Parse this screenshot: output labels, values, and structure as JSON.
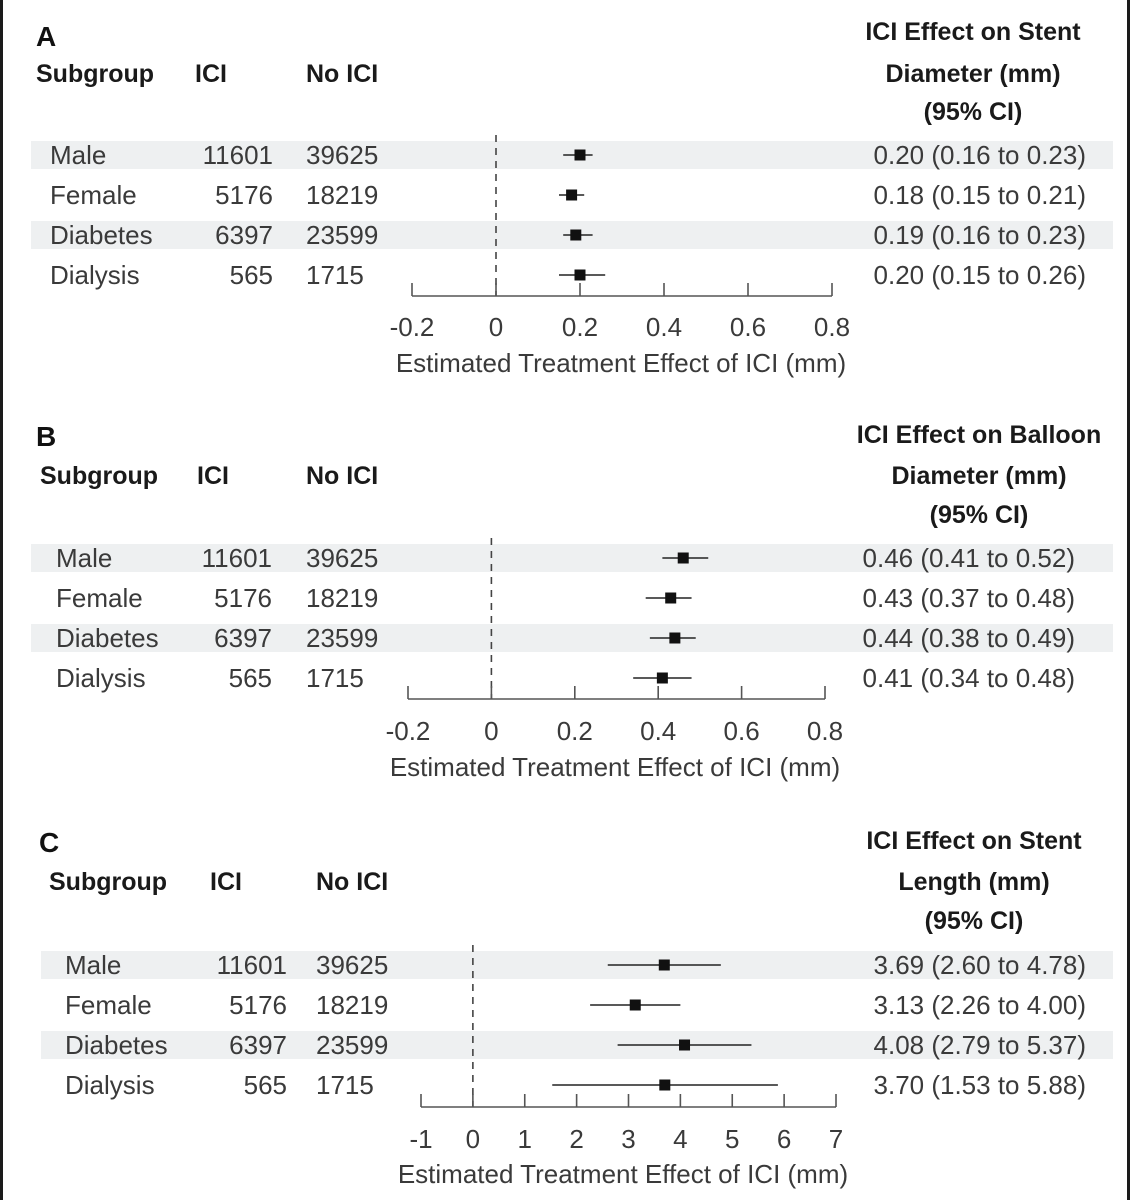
{
  "column_headers": {
    "subgroup": "Subgroup",
    "ici": "ICI",
    "no_ici": "No ICI"
  },
  "chart_data": [
    {
      "type": "forest",
      "panel": "A",
      "effect_header": [
        "ICI Effect on Stent",
        "Diameter (mm)",
        "(95% CI)"
      ],
      "xlabel": "Estimated Treatment Effect of ICI (mm)",
      "xlim": [
        -0.2,
        0.8
      ],
      "ticks": [
        -0.2,
        0,
        0.2,
        0.4,
        0.6,
        0.8
      ],
      "tick_labels": [
        "-0.2",
        "0",
        "0.2",
        "0.4",
        "0.6",
        "0.8"
      ],
      "reference": 0,
      "rows": [
        {
          "subgroup": "Male",
          "ici": "11601",
          "no_ici": "39625",
          "estimate": 0.2,
          "lower": 0.16,
          "upper": 0.23,
          "label": "0.20 (0.16 to 0.23)"
        },
        {
          "subgroup": "Female",
          "ici": "5176",
          "no_ici": "18219",
          "estimate": 0.18,
          "lower": 0.15,
          "upper": 0.21,
          "label": "0.18 (0.15 to 0.21)"
        },
        {
          "subgroup": "Diabetes",
          "ici": "6397",
          "no_ici": "23599",
          "estimate": 0.19,
          "lower": 0.16,
          "upper": 0.23,
          "label": "0.19 (0.16 to 0.23)"
        },
        {
          "subgroup": "Dialysis",
          "ici": "565",
          "no_ici": "1715",
          "estimate": 0.2,
          "lower": 0.15,
          "upper": 0.26,
          "label": "0.20 (0.15 to 0.26)"
        }
      ]
    },
    {
      "type": "forest",
      "panel": "B",
      "effect_header": [
        "ICI Effect on Balloon",
        "Diameter (mm)",
        "(95% CI)"
      ],
      "xlabel": "Estimated Treatment Effect of ICI (mm)",
      "xlim": [
        -0.2,
        0.8
      ],
      "ticks": [
        -0.2,
        0,
        0.2,
        0.4,
        0.6,
        0.8
      ],
      "tick_labels": [
        "-0.2",
        "0",
        "0.2",
        "0.4",
        "0.6",
        "0.8"
      ],
      "reference": 0,
      "rows": [
        {
          "subgroup": "Male",
          "ici": "11601",
          "no_ici": "39625",
          "estimate": 0.46,
          "lower": 0.41,
          "upper": 0.52,
          "label": "0.46 (0.41 to 0.52)"
        },
        {
          "subgroup": "Female",
          "ici": "5176",
          "no_ici": "18219",
          "estimate": 0.43,
          "lower": 0.37,
          "upper": 0.48,
          "label": "0.43 (0.37 to 0.48)"
        },
        {
          "subgroup": "Diabetes",
          "ici": "6397",
          "no_ici": "23599",
          "estimate": 0.44,
          "lower": 0.38,
          "upper": 0.49,
          "label": "0.44 (0.38 to 0.49)"
        },
        {
          "subgroup": "Dialysis",
          "ici": "565",
          "no_ici": "1715",
          "estimate": 0.41,
          "lower": 0.34,
          "upper": 0.48,
          "label": "0.41 (0.34 to 0.48)"
        }
      ]
    },
    {
      "type": "forest",
      "panel": "C",
      "effect_header": [
        "ICI Effect on Stent",
        "Length (mm)",
        "(95% CI)"
      ],
      "xlabel": "Estimated Treatment Effect of ICI (mm)",
      "xlim": [
        -1,
        7
      ],
      "ticks": [
        -1,
        0,
        1,
        2,
        3,
        4,
        5,
        6,
        7
      ],
      "tick_labels": [
        "-1",
        "0",
        "1",
        "2",
        "3",
        "4",
        "5",
        "6",
        "7"
      ],
      "reference": 0,
      "rows": [
        {
          "subgroup": "Male",
          "ici": "11601",
          "no_ici": "39625",
          "estimate": 3.69,
          "lower": 2.6,
          "upper": 4.78,
          "label": "3.69 (2.60 to 4.78)"
        },
        {
          "subgroup": "Female",
          "ici": "5176",
          "no_ici": "18219",
          "estimate": 3.13,
          "lower": 2.26,
          "upper": 4.0,
          "label": "3.13 (2.26 to 4.00)"
        },
        {
          "subgroup": "Diabetes",
          "ici": "6397",
          "no_ici": "23599",
          "estimate": 4.08,
          "lower": 2.79,
          "upper": 5.37,
          "label": "4.08 (2.79 to 5.37)"
        },
        {
          "subgroup": "Dialysis",
          "ici": "565",
          "no_ici": "1715",
          "estimate": 3.7,
          "lower": 1.53,
          "upper": 5.88,
          "label": "3.70 (1.53 to 5.88)"
        }
      ]
    }
  ]
}
